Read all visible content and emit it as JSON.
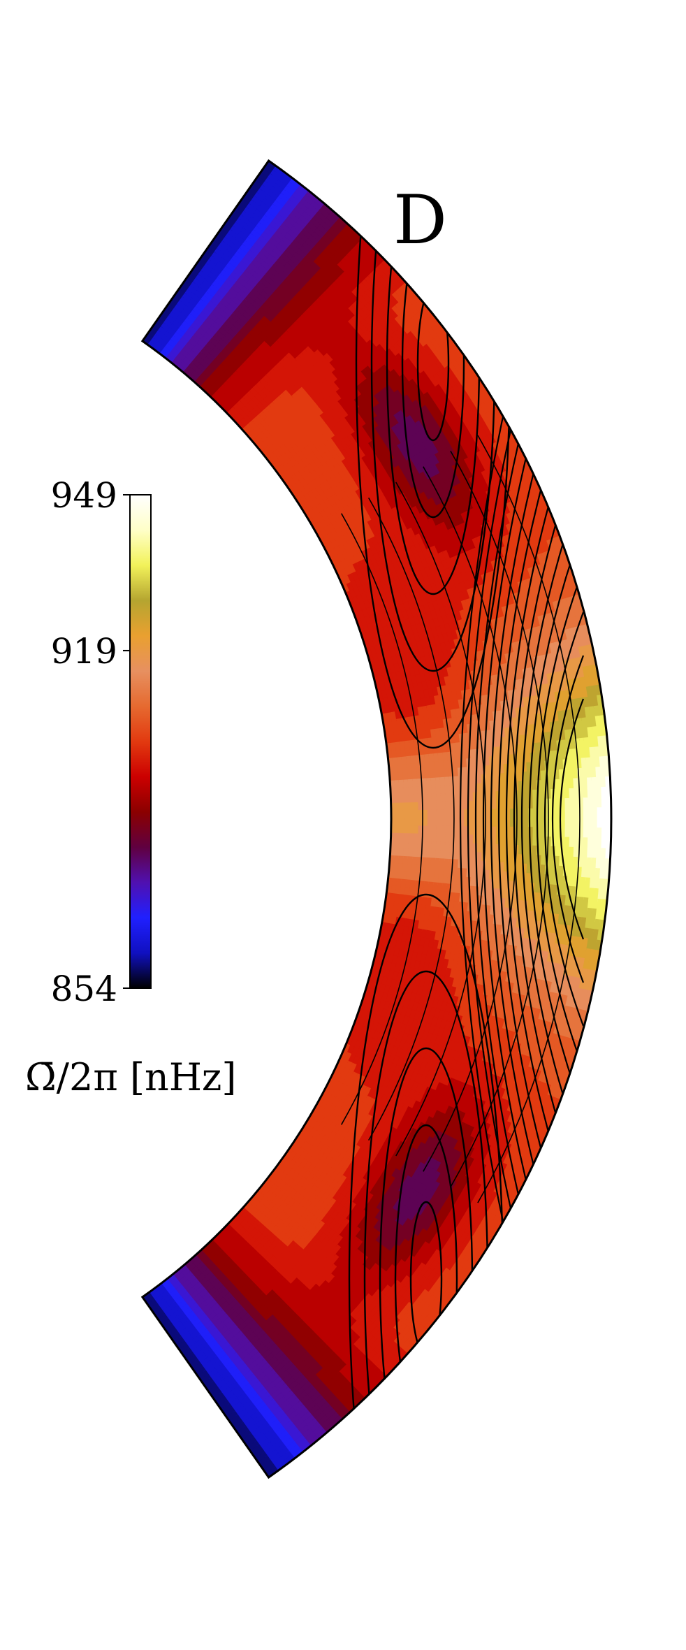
{
  "chart_data": {
    "type": "heatmap",
    "panel_label": "D",
    "colorbar": {
      "title": "Ω̄/2π [nHz]",
      "min": 854,
      "max": 949,
      "ticks": [
        {
          "value": 949,
          "label": "949"
        },
        {
          "value": 919,
          "label": "919"
        },
        {
          "value": 854,
          "label": "854"
        }
      ],
      "colormap": [
        "#000000",
        "#1010c0",
        "#2020ff",
        "#5010b0",
        "#600040",
        "#8b0000",
        "#cc0000",
        "#e23a10",
        "#e66a30",
        "#e79060",
        "#e9a030",
        "#b5a530",
        "#f2f25a",
        "#ffffc8",
        "#ffffff"
      ]
    },
    "domain": "meridional-slice",
    "symmetric_about_equator": true,
    "features": [
      {
        "region": "equator-outer-surface",
        "value": 949
      },
      {
        "region": "mid-latitude-tangent-cylinder",
        "value": 880
      },
      {
        "region": "polar-regions",
        "value": 854
      }
    ],
    "contours": true
  }
}
